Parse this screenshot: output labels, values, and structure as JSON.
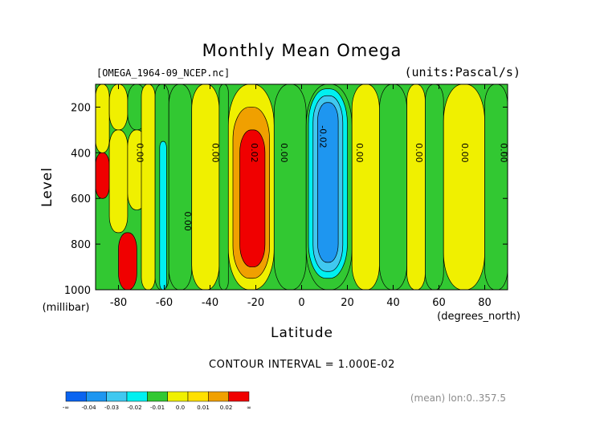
{
  "chart_data": {
    "type": "heatmap",
    "title": "Monthly Mean Omega",
    "file_label": "[OMEGA_1964-09_NCEP.nc]",
    "units_label": "(units:Pascal/s)",
    "xlabel": "Latitude",
    "x_units": "(degrees_north)",
    "ylabel": "Level",
    "y_units": "(millibar)",
    "xlim": [
      -90,
      90
    ],
    "ylim": [
      1000,
      100
    ],
    "x_ticks": [
      "-80",
      "-60",
      "-40",
      "-20",
      "0",
      "20",
      "40",
      "60",
      "80"
    ],
    "x_tick_values": [
      -80,
      -60,
      -40,
      -20,
      0,
      20,
      40,
      60,
      80
    ],
    "y_ticks": [
      "200",
      "400",
      "600",
      "800",
      "1000"
    ],
    "y_tick_values": [
      200,
      400,
      600,
      800,
      1000
    ],
    "contour_interval_text": "CONTOUR INTERVAL = 1.000E-02",
    "mean_text": "(mean) lon:0..357.5",
    "contour_labels": [
      {
        "text": "0.00",
        "lat": -72,
        "level": 400
      },
      {
        "text": "0.00",
        "lat": -39,
        "level": 400
      },
      {
        "text": "0.02",
        "lat": -22,
        "level": 400
      },
      {
        "text": "0.00",
        "lat": -9,
        "level": 400
      },
      {
        "text": "-0.02",
        "lat": 8,
        "level": 330
      },
      {
        "text": "0.00",
        "lat": 24,
        "level": 400
      },
      {
        "text": "0.00",
        "lat": 50,
        "level": 400
      },
      {
        "text": "0.00",
        "lat": 70,
        "level": 400
      },
      {
        "text": "0.00",
        "lat": 87,
        "level": 400
      },
      {
        "text": "0.00",
        "lat": -51,
        "level": 700
      }
    ],
    "colorbar": {
      "ticks": [
        "-∞",
        "-0.04",
        "-0.03",
        "-0.02",
        "-0.01",
        "0.0",
        "0.01",
        "0.02",
        "∞"
      ],
      "colors": [
        "#0a64f0",
        "#1e96f0",
        "#40c8f0",
        "#00f0f0",
        "#32c832",
        "#f0f000",
        "#ffe000",
        "#f0a000",
        "#f00000"
      ]
    },
    "value_colors": {
      "lt_-0.04": "#0a64f0",
      "-0.04_-0.03": "#1e96f0",
      "-0.03_-0.02": "#40c8f0",
      "-0.02_-0.01": "#00f0f0",
      "-0.01_0.0": "#32c832",
      "0.0_0.01": "#f0f000",
      "0.01_0.02": "#f0a000",
      "gt_0.02": "#f00000",
      "gt_0.04": "#8b0000"
    },
    "bands": [
      {
        "lat": [
          -90,
          -84
        ],
        "level": [
          100,
          400
        ],
        "value": 0.005
      },
      {
        "lat": [
          -90,
          -84
        ],
        "level": [
          400,
          600
        ],
        "value": 0.025
      },
      {
        "lat": [
          -84,
          -76
        ],
        "level": [
          100,
          300
        ],
        "value": 0.005
      },
      {
        "lat": [
          -84,
          -76
        ],
        "level": [
          300,
          750
        ],
        "value": 0.005
      },
      {
        "lat": [
          -76,
          -68
        ],
        "level": [
          100,
          300
        ],
        "value": -0.005
      },
      {
        "lat": [
          -76,
          -68
        ],
        "level": [
          300,
          650
        ],
        "value": 0.005
      },
      {
        "lat": [
          -80,
          -72
        ],
        "level": [
          750,
          1000
        ],
        "value": 0.035
      },
      {
        "lat": [
          -70,
          -64
        ],
        "level": [
          100,
          1000
        ],
        "value": 0.005
      },
      {
        "lat": [
          -64,
          -58
        ],
        "level": [
          100,
          1000
        ],
        "value": -0.005
      },
      {
        "lat": [
          -62,
          -59
        ],
        "level": [
          350,
          1000
        ],
        "value": -0.015
      },
      {
        "lat": [
          -58,
          -48
        ],
        "level": [
          100,
          1000
        ],
        "value": -0.005
      },
      {
        "lat": [
          -48,
          -36
        ],
        "level": [
          100,
          1000
        ],
        "value": 0.005
      },
      {
        "lat": [
          -36,
          -32
        ],
        "level": [
          100,
          1000
        ],
        "value": -0.005
      },
      {
        "lat": [
          -32,
          -12
        ],
        "level": [
          100,
          1000
        ],
        "value": 0.005
      },
      {
        "lat": [
          -30,
          -14
        ],
        "level": [
          200,
          950
        ],
        "value": 0.015
      },
      {
        "lat": [
          -27,
          -16
        ],
        "level": [
          300,
          900
        ],
        "value": 0.025
      },
      {
        "lat": [
          -12,
          2
        ],
        "level": [
          100,
          1000
        ],
        "value": -0.005
      },
      {
        "lat": [
          2,
          22
        ],
        "level": [
          100,
          1000
        ],
        "value": -0.005
      },
      {
        "lat": [
          3,
          20
        ],
        "level": [
          120,
          950
        ],
        "value": -0.015
      },
      {
        "lat": [
          5,
          18
        ],
        "level": [
          150,
          920
        ],
        "value": -0.025
      },
      {
        "lat": [
          7,
          16
        ],
        "level": [
          180,
          880
        ],
        "value": -0.035
      },
      {
        "lat": [
          22,
          34
        ],
        "level": [
          100,
          1000
        ],
        "value": 0.005
      },
      {
        "lat": [
          34,
          46
        ],
        "level": [
          100,
          1000
        ],
        "value": -0.005
      },
      {
        "lat": [
          46,
          54
        ],
        "level": [
          100,
          1000
        ],
        "value": 0.005
      },
      {
        "lat": [
          54,
          62
        ],
        "level": [
          100,
          1000
        ],
        "value": -0.005
      },
      {
        "lat": [
          62,
          80
        ],
        "level": [
          100,
          1000
        ],
        "value": 0.005
      },
      {
        "lat": [
          80,
          90
        ],
        "level": [
          100,
          1000
        ],
        "value": -0.005
      }
    ]
  }
}
